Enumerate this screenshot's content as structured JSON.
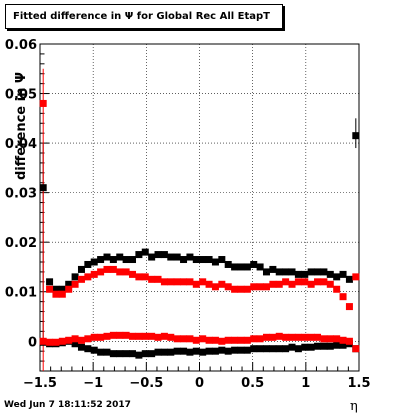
{
  "chart_data": {
    "type": "scatter",
    "title": "Fitted difference in  Ψ  for Global Rec All EtapT",
    "xlabel": "η",
    "ylabel": "difference in  Ψ",
    "xlim": [
      -1.5,
      1.5
    ],
    "ylim": [
      -0.006,
      0.06
    ],
    "xticks": [
      -1.5,
      -1,
      -0.5,
      0,
      0.5,
      1,
      1.5
    ],
    "xtick_labels": [
      "−1.5",
      "−1",
      "−0.5",
      "0",
      "0.5",
      "1",
      "1.5"
    ],
    "yticks": [
      0,
      0.01,
      0.02,
      0.03,
      0.04,
      0.05,
      0.06
    ],
    "ytick_labels": [
      "0",
      "0.01",
      "0.02",
      "0.03",
      "0.04",
      "0.05",
      "0.06"
    ],
    "grid": true,
    "x": [
      -1.47,
      -1.41,
      -1.35,
      -1.29,
      -1.23,
      -1.17,
      -1.11,
      -1.05,
      -0.99,
      -0.93,
      -0.87,
      -0.81,
      -0.75,
      -0.69,
      -0.63,
      -0.57,
      -0.51,
      -0.45,
      -0.39,
      -0.33,
      -0.27,
      -0.21,
      -0.15,
      -0.09,
      -0.03,
      0.03,
      0.09,
      0.15,
      0.21,
      0.27,
      0.33,
      0.39,
      0.45,
      0.51,
      0.57,
      0.63,
      0.69,
      0.75,
      0.81,
      0.87,
      0.93,
      0.99,
      1.05,
      1.11,
      1.17,
      1.23,
      1.29,
      1.35,
      1.41,
      1.47
    ],
    "series": [
      {
        "color": "#000000",
        "values": [
          0.031,
          0.012,
          0.0105,
          0.0105,
          0.0115,
          0.013,
          0.0145,
          0.0155,
          0.016,
          0.0165,
          0.017,
          0.0165,
          0.017,
          0.0165,
          0.0165,
          0.0175,
          0.018,
          0.017,
          0.0175,
          0.0175,
          0.017,
          0.017,
          0.0165,
          0.017,
          0.0165,
          0.0165,
          0.0165,
          0.016,
          0.0165,
          0.0155,
          0.015,
          0.015,
          0.015,
          0.0155,
          0.015,
          0.014,
          0.0145,
          0.014,
          0.014,
          0.014,
          0.0135,
          0.0135,
          0.014,
          0.014,
          0.014,
          0.0135,
          0.013,
          0.0135,
          0.0125,
          0.0415
        ]
      },
      {
        "color": "#ff0000",
        "values": [
          0.048,
          0.0105,
          0.0095,
          0.0095,
          0.0105,
          0.0115,
          0.0125,
          0.013,
          0.0135,
          0.014,
          0.0145,
          0.0145,
          0.014,
          0.014,
          0.0135,
          0.013,
          0.013,
          0.0125,
          0.0125,
          0.012,
          0.012,
          0.012,
          0.012,
          0.012,
          0.0115,
          0.012,
          0.0115,
          0.011,
          0.0115,
          0.011,
          0.0105,
          0.0105,
          0.0105,
          0.011,
          0.011,
          0.011,
          0.0115,
          0.0115,
          0.012,
          0.0115,
          0.012,
          0.012,
          0.0115,
          0.012,
          0.012,
          0.0115,
          0.0105,
          0.009,
          0.007,
          0.013
        ]
      },
      {
        "color": "#000000",
        "values": [
          -0.0002,
          -0.0005,
          -0.0005,
          -0.0003,
          0.0,
          -0.0005,
          -0.0012,
          -0.0015,
          -0.0018,
          -0.0022,
          -0.0022,
          -0.0025,
          -0.0025,
          -0.0025,
          -0.0025,
          -0.0028,
          -0.0025,
          -0.0025,
          -0.0022,
          -0.0022,
          -0.0022,
          -0.002,
          -0.002,
          -0.0022,
          -0.002,
          -0.0022,
          -0.002,
          -0.002,
          -0.0018,
          -0.002,
          -0.0018,
          -0.0018,
          -0.0018,
          -0.0015,
          -0.0015,
          -0.0015,
          -0.0015,
          -0.0015,
          -0.0015,
          -0.0012,
          -0.0015,
          -0.0012,
          -0.0012,
          -0.001,
          -0.001,
          -0.001,
          -0.0008,
          -0.0008,
          -0.0005,
          -0.0015
        ]
      },
      {
        "color": "#ff0000",
        "values": [
          0.0,
          -0.0002,
          -0.0002,
          0.0,
          0.0002,
          0.0005,
          0.0002,
          0.0005,
          0.0008,
          0.0008,
          0.001,
          0.0012,
          0.0012,
          0.0012,
          0.001,
          0.001,
          0.001,
          0.001,
          0.0008,
          0.001,
          0.0008,
          0.0005,
          0.0005,
          0.0005,
          0.0002,
          0.0005,
          0.0002,
          0.0002,
          0.0,
          0.0002,
          0.0002,
          0.0002,
          0.0002,
          0.0005,
          0.0005,
          0.0008,
          0.0008,
          0.001,
          0.0008,
          0.0008,
          0.0008,
          0.0008,
          0.0008,
          0.0008,
          0.0005,
          0.0005,
          0.0005,
          0.0002,
          0.0,
          -0.0015
        ]
      }
    ],
    "edge_error_bars": [
      {
        "x": -1.47,
        "series": 0,
        "low": 0.0,
        "high": 0.04
      },
      {
        "x": -1.47,
        "series": 1,
        "low": -0.006,
        "high": 0.055
      },
      {
        "x": 1.47,
        "series": 0,
        "low": 0.039,
        "high": 0.045
      }
    ]
  },
  "footer": {
    "timestamp": "Wed Jun  7 18:11:52 2017"
  }
}
